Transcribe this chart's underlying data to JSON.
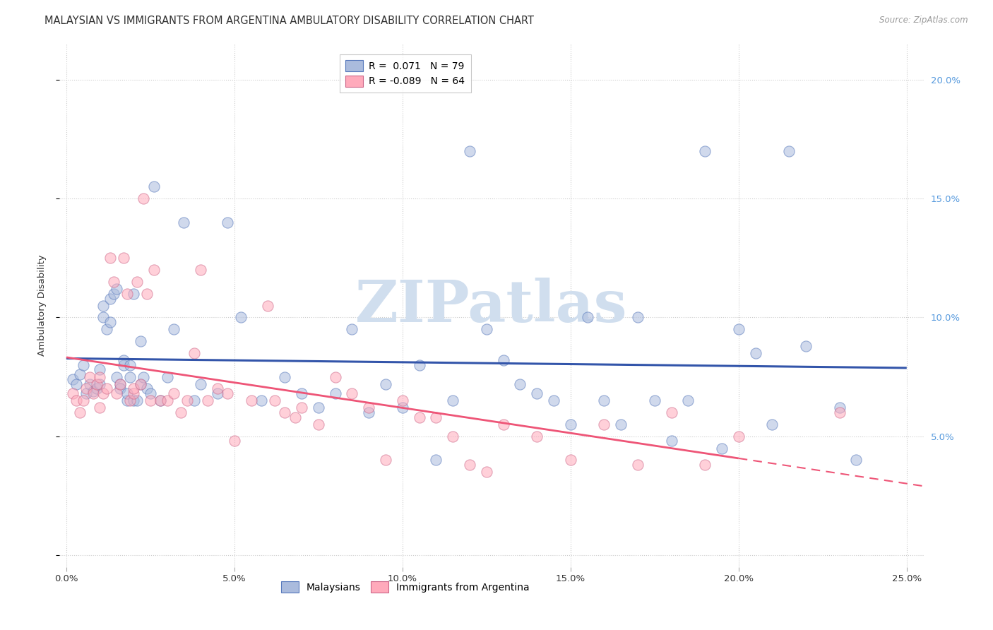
{
  "title": "MALAYSIAN VS IMMIGRANTS FROM ARGENTINA AMBULATORY DISABILITY CORRELATION CHART",
  "source": "Source: ZipAtlas.com",
  "ylabel_label": "Ambulatory Disability",
  "xlim": [
    -0.002,
    0.255
  ],
  "ylim": [
    -0.005,
    0.215
  ],
  "xticks": [
    0.0,
    0.05,
    0.1,
    0.15,
    0.2,
    0.25
  ],
  "xticklabels": [
    "0.0%",
    "5.0%",
    "10.0%",
    "15.0%",
    "20.0%",
    "25.0%"
  ],
  "yticks": [
    0.0,
    0.05,
    0.1,
    0.15,
    0.2
  ],
  "yticklabels_right": [
    "",
    "5.0%",
    "10.0%",
    "15.0%",
    "20.0%"
  ],
  "blue_face": "#AABBDD",
  "blue_edge": "#5577BB",
  "pink_face": "#FFAABB",
  "pink_edge": "#CC6688",
  "line_blue_color": "#3355AA",
  "line_pink_color": "#EE5577",
  "watermark_color": "#D0DEEE",
  "grid_color": "#CCCCCC",
  "right_tick_color": "#5599DD",
  "title_color": "#333333",
  "source_color": "#999999",
  "ylabel_color": "#333333",
  "tick_color": "#333333",
  "background": "#FFFFFF",
  "malaysians_x": [
    0.002,
    0.003,
    0.004,
    0.005,
    0.006,
    0.007,
    0.008,
    0.009,
    0.01,
    0.01,
    0.011,
    0.011,
    0.012,
    0.013,
    0.013,
    0.014,
    0.015,
    0.015,
    0.016,
    0.016,
    0.017,
    0.017,
    0.018,
    0.018,
    0.019,
    0.019,
    0.02,
    0.02,
    0.021,
    0.022,
    0.022,
    0.023,
    0.024,
    0.025,
    0.026,
    0.028,
    0.03,
    0.032,
    0.035,
    0.038,
    0.04,
    0.045,
    0.048,
    0.052,
    0.058,
    0.065,
    0.07,
    0.075,
    0.08,
    0.085,
    0.09,
    0.095,
    0.1,
    0.105,
    0.11,
    0.115,
    0.12,
    0.125,
    0.13,
    0.135,
    0.14,
    0.145,
    0.15,
    0.155,
    0.16,
    0.165,
    0.17,
    0.175,
    0.18,
    0.185,
    0.19,
    0.195,
    0.2,
    0.205,
    0.21,
    0.215,
    0.22,
    0.23,
    0.235
  ],
  "malaysians_y": [
    0.074,
    0.072,
    0.076,
    0.08,
    0.068,
    0.072,
    0.069,
    0.07,
    0.078,
    0.072,
    0.1,
    0.105,
    0.095,
    0.098,
    0.108,
    0.11,
    0.112,
    0.075,
    0.072,
    0.07,
    0.08,
    0.082,
    0.065,
    0.068,
    0.075,
    0.08,
    0.11,
    0.065,
    0.065,
    0.09,
    0.072,
    0.075,
    0.07,
    0.068,
    0.155,
    0.065,
    0.075,
    0.095,
    0.14,
    0.065,
    0.072,
    0.068,
    0.14,
    0.1,
    0.065,
    0.075,
    0.068,
    0.062,
    0.068,
    0.095,
    0.06,
    0.072,
    0.062,
    0.08,
    0.04,
    0.065,
    0.17,
    0.095,
    0.082,
    0.072,
    0.068,
    0.065,
    0.055,
    0.1,
    0.065,
    0.055,
    0.1,
    0.065,
    0.048,
    0.065,
    0.17,
    0.045,
    0.095,
    0.085,
    0.055,
    0.17,
    0.088,
    0.062,
    0.04
  ],
  "argentina_x": [
    0.002,
    0.003,
    0.004,
    0.005,
    0.006,
    0.007,
    0.008,
    0.009,
    0.01,
    0.01,
    0.011,
    0.012,
    0.013,
    0.014,
    0.015,
    0.016,
    0.017,
    0.018,
    0.019,
    0.02,
    0.02,
    0.021,
    0.022,
    0.023,
    0.024,
    0.025,
    0.026,
    0.028,
    0.03,
    0.032,
    0.034,
    0.036,
    0.038,
    0.04,
    0.042,
    0.045,
    0.048,
    0.05,
    0.055,
    0.06,
    0.062,
    0.065,
    0.068,
    0.07,
    0.075,
    0.08,
    0.085,
    0.09,
    0.095,
    0.1,
    0.105,
    0.11,
    0.115,
    0.12,
    0.125,
    0.13,
    0.14,
    0.15,
    0.16,
    0.17,
    0.18,
    0.19,
    0.2,
    0.23
  ],
  "argentina_y": [
    0.068,
    0.065,
    0.06,
    0.065,
    0.07,
    0.075,
    0.068,
    0.072,
    0.062,
    0.075,
    0.068,
    0.07,
    0.125,
    0.115,
    0.068,
    0.072,
    0.125,
    0.11,
    0.065,
    0.068,
    0.07,
    0.115,
    0.072,
    0.15,
    0.11,
    0.065,
    0.12,
    0.065,
    0.065,
    0.068,
    0.06,
    0.065,
    0.085,
    0.12,
    0.065,
    0.07,
    0.068,
    0.048,
    0.065,
    0.105,
    0.065,
    0.06,
    0.058,
    0.062,
    0.055,
    0.075,
    0.068,
    0.062,
    0.04,
    0.065,
    0.058,
    0.058,
    0.05,
    0.038,
    0.035,
    0.055,
    0.05,
    0.04,
    0.055,
    0.038,
    0.06,
    0.038,
    0.05,
    0.06
  ],
  "scatter_size": 120,
  "scatter_alpha": 0.55,
  "title_fontsize": 10.5,
  "source_fontsize": 8.5,
  "tick_fontsize": 9.5,
  "ylabel_fontsize": 9.5,
  "legend_fontsize": 10,
  "watermark_fontsize": 60
}
